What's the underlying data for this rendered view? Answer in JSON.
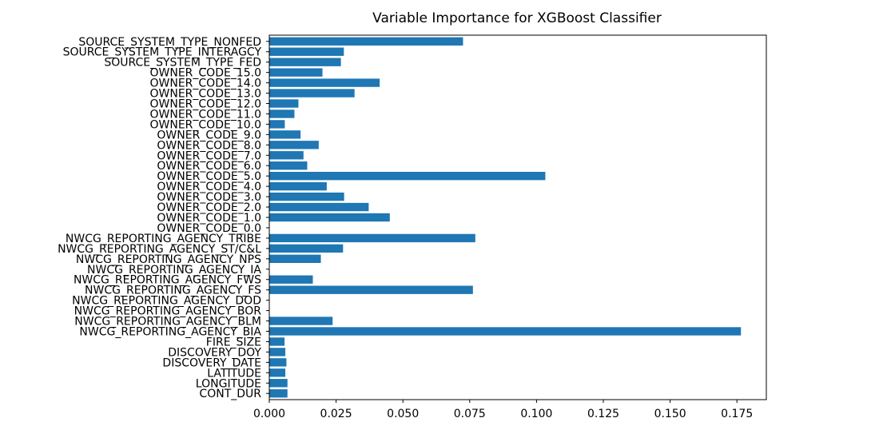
{
  "chart_data": {
    "type": "bar",
    "orientation": "horizontal",
    "title": "Variable Importance for XGBoost Classifier",
    "xlabel": "",
    "ylabel": "",
    "xlim": [
      0,
      0.186
    ],
    "xticks": [
      "0.000",
      "0.025",
      "0.050",
      "0.075",
      "0.100",
      "0.125",
      "0.150",
      "0.175"
    ],
    "xtick_values": [
      0,
      0.025,
      0.05,
      0.075,
      0.1,
      0.125,
      0.15,
      0.175
    ],
    "bar_color": "#1f77b4",
    "grid": false,
    "categories": [
      "CONT_DUR",
      "LONGITUDE",
      "LATITUDE",
      "DISCOVERY_DATE",
      "DISCOVERY_DOY",
      "FIRE_SIZE",
      "NWCG_REPORTING_AGENCY_BIA",
      "NWCG_REPORTING_AGENCY_BLM",
      "NWCG_REPORTING_AGENCY_BOR",
      "NWCG_REPORTING_AGENCY_DOD",
      "NWCG_REPORTING_AGENCY_FS",
      "NWCG_REPORTING_AGENCY_FWS",
      "NWCG_REPORTING_AGENCY_IA",
      "NWCG_REPORTING_AGENCY_NPS",
      "NWCG_REPORTING_AGENCY_ST/C&L",
      "NWCG_REPORTING_AGENCY_TRIBE",
      "OWNER_CODE_0.0",
      "OWNER_CODE_1.0",
      "OWNER_CODE_2.0",
      "OWNER_CODE_3.0",
      "OWNER_CODE_4.0",
      "OWNER_CODE_5.0",
      "OWNER_CODE_6.0",
      "OWNER_CODE_7.0",
      "OWNER_CODE_8.0",
      "OWNER_CODE_9.0",
      "OWNER_CODE_10.0",
      "OWNER_CODE_11.0",
      "OWNER_CODE_12.0",
      "OWNER_CODE_13.0",
      "OWNER_CODE_14.0",
      "OWNER_CODE_15.0",
      "SOURCE_SYSTEM_TYPE_FED",
      "SOURCE_SYSTEM_TYPE_INTERAGCY",
      "SOURCE_SYSTEM_TYPE_NONFED"
    ],
    "values": [
      0.0068,
      0.0068,
      0.006,
      0.0064,
      0.006,
      0.0057,
      0.1765,
      0.0237,
      0.0,
      0.0,
      0.0762,
      0.0163,
      0.0,
      0.0193,
      0.0276,
      0.0771,
      0.0,
      0.0451,
      0.0372,
      0.028,
      0.0215,
      0.1033,
      0.0142,
      0.0128,
      0.0185,
      0.0117,
      0.0058,
      0.0094,
      0.0109,
      0.0319,
      0.0413,
      0.0199,
      0.0268,
      0.0279,
      0.0725
    ]
  }
}
